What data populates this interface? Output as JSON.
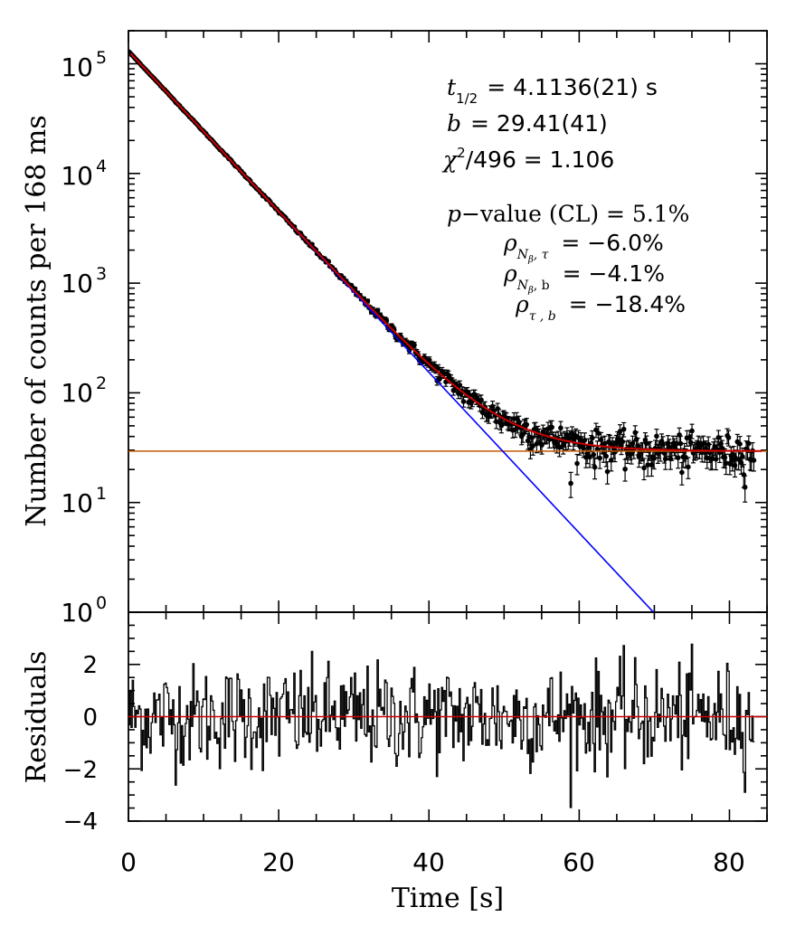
{
  "chart_data": [
    {
      "type": "scatter",
      "panel": "decay",
      "ylabel": "Number of counts per 168 ms",
      "yscale": "log",
      "xlim": [
        0,
        85
      ],
      "ylim": [
        1,
        200000
      ],
      "xticks": [
        0,
        20,
        40,
        60,
        80
      ],
      "yticks": [
        {
          "mantissa": "10",
          "exp": "0"
        },
        {
          "mantissa": "10",
          "exp": "1"
        },
        {
          "mantissa": "10",
          "exp": "2"
        },
        {
          "mantissa": "10",
          "exp": "3"
        },
        {
          "mantissa": "10",
          "exp": "4"
        },
        {
          "mantissa": "10",
          "exp": "5"
        }
      ],
      "fit": {
        "half_life_s": 4.1136,
        "background": 29.41,
        "initial_counts": 130000
      },
      "annotations": {
        "t_half": {
          "sym": "t",
          "sub": "1/2",
          "value": "=  4.1136(21) s"
        },
        "b": {
          "sym": "b",
          "value": "=   29.41(41)"
        },
        "chi": {
          "sym": "χ",
          "sup": "2",
          "rest": "/496  =  1.106"
        },
        "pvalue": {
          "sym": "p",
          "rest": "−value (CL)  =   5.1%"
        },
        "rho1": {
          "sym": "ρ",
          "sub1": "N",
          "sub2": "β",
          "sub3": ", τ",
          "value": "=    −6.0%"
        },
        "rho2": {
          "sym": "ρ",
          "sub1": "N",
          "sub2": "β",
          "sub3": ", b",
          "value": "=    −4.1%"
        },
        "rho3": {
          "sym": "ρ",
          "sub3": "τ , b",
          "value": "=  −18.4%"
        }
      },
      "series": [],
      "colors": {
        "data": "#000000",
        "total_fit": "#cc0000",
        "exponential": "#0000ff",
        "background": "#c05a00"
      }
    },
    {
      "type": "line",
      "panel": "residuals",
      "xlabel": "Time [s]",
      "ylabel": "Residuals",
      "xlim": [
        0,
        85
      ],
      "ylim": [
        -4,
        4
      ],
      "xticks": [
        0,
        20,
        40,
        60,
        80
      ],
      "yticks": [
        -4,
        -2,
        0,
        2
      ],
      "ytick_labels": [
        "−4",
        "−2",
        "0",
        "2"
      ],
      "zero_line_color": "#cc0000",
      "n_bins": 496,
      "bin_width_s": 0.168
    }
  ]
}
